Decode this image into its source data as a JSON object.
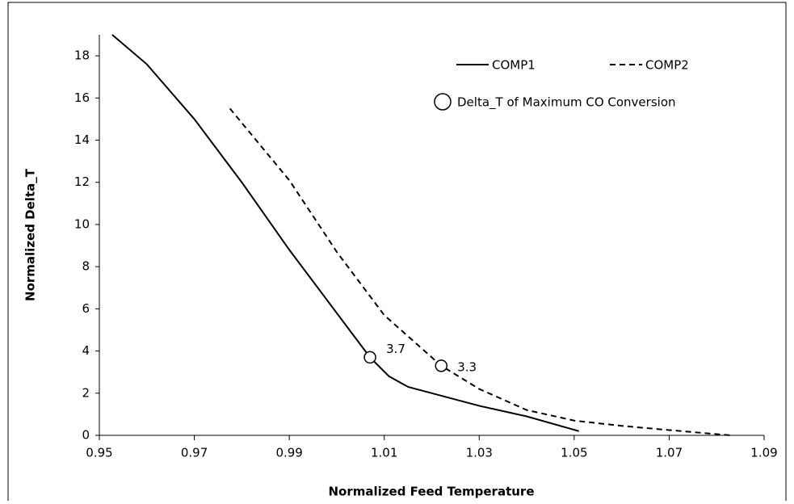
{
  "chart_data": {
    "type": "line",
    "xlabel": "Normalized Feed Temperature",
    "ylabel": "Normalized Delta_T",
    "xlim": [
      0.95,
      1.09
    ],
    "xticks": [
      0.95,
      0.97,
      0.99,
      1.01,
      1.03,
      1.05,
      1.07,
      1.09
    ],
    "ylim": [
      0,
      19
    ],
    "yticks": [
      0,
      2,
      4,
      6,
      8,
      10,
      12,
      14,
      16,
      18
    ],
    "grid": false,
    "legend": "upper right",
    "series": [
      {
        "name": "COMP1",
        "color": "#000000",
        "line_style": "solid",
        "x": [
          0.9527,
          0.96,
          0.97,
          0.98,
          0.99,
          1.0,
          1.007,
          1.011,
          1.015,
          1.03,
          1.04,
          1.051
        ],
        "values": [
          19.0,
          17.6,
          15.0,
          12.0,
          8.8,
          5.8,
          3.7,
          2.8,
          2.3,
          1.4,
          0.9,
          0.2
        ]
      },
      {
        "name": "COMP2",
        "color": "#000000",
        "line_style": "dashed",
        "x": [
          0.9775,
          0.99,
          1.0,
          1.01,
          1.022,
          1.03,
          1.04,
          1.05,
          1.06,
          1.07,
          1.083
        ],
        "values": [
          15.5,
          12.1,
          8.7,
          5.7,
          3.3,
          2.2,
          1.2,
          0.7,
          0.45,
          0.25,
          0.0
        ]
      },
      {
        "name": "Delta_T of Maximum CO Conversion",
        "color": "#000000",
        "marker": "circle",
        "x": [
          1.007,
          1.022
        ],
        "values": [
          3.7,
          3.3
        ]
      }
    ]
  }
}
